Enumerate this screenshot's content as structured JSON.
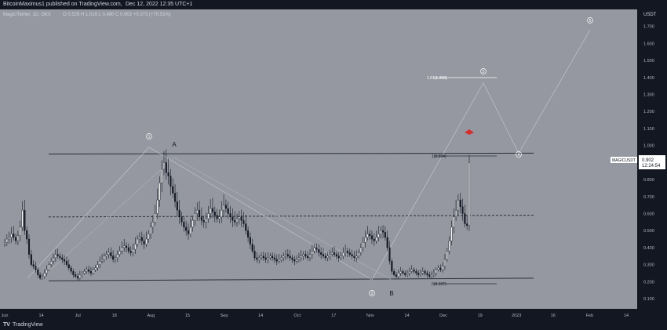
{
  "header": {
    "publisher": "BitcoinMaximus1 published on TradingView.com,",
    "date": "Dec 12, 2022 12:35 UTC+1"
  },
  "footer": {
    "logo": "TV",
    "brand": "TradingView"
  },
  "chart_data": {
    "type": "candlestick",
    "title": "Magic/Tether, 1D, OKX",
    "ohlc_text": "O 0.529  H 1.016  L 0.480  C 0.902  +0.373 (+70.51%)",
    "currency": "USDT",
    "price_axis": {
      "range": [
        0.04,
        1.8
      ],
      "ticks": [
        "0.100",
        "0.200",
        "0.300",
        "0.400",
        "0.500",
        "0.600",
        "0.700",
        "0.800",
        "0.900",
        "1.000",
        "1.100",
        "1.200",
        "1.300",
        "1.400",
        "1.500",
        "1.600",
        "1.700"
      ]
    },
    "time_axis": {
      "ticks": [
        "Jun",
        "14",
        "Jul",
        "18",
        "Aug",
        "15",
        "Sep",
        "14",
        "Oct",
        "17",
        "Nov",
        "14",
        "Dec",
        "19",
        "2023",
        "16",
        "Feb",
        "14"
      ]
    },
    "symbol_label": "MAGICUSDT",
    "last_price": "0.902",
    "countdown": "12:24:54",
    "closes": [
      0.43,
      0.45,
      0.46,
      0.48,
      0.46,
      0.44,
      0.47,
      0.52,
      0.62,
      0.5,
      0.45,
      0.36,
      0.3,
      0.29,
      0.27,
      0.24,
      0.22,
      0.23,
      0.25,
      0.27,
      0.3,
      0.32,
      0.34,
      0.36,
      0.35,
      0.34,
      0.33,
      0.32,
      0.3,
      0.28,
      0.26,
      0.24,
      0.23,
      0.22,
      0.24,
      0.25,
      0.26,
      0.27,
      0.26,
      0.25,
      0.27,
      0.28,
      0.3,
      0.32,
      0.33,
      0.35,
      0.36,
      0.37,
      0.35,
      0.33,
      0.34,
      0.36,
      0.38,
      0.4,
      0.41,
      0.4,
      0.38,
      0.37,
      0.39,
      0.42,
      0.45,
      0.46,
      0.44,
      0.42,
      0.45,
      0.48,
      0.52,
      0.55,
      0.6,
      0.68,
      0.78,
      0.86,
      0.9,
      0.84,
      0.82,
      0.76,
      0.72,
      0.67,
      0.62,
      0.58,
      0.55,
      0.52,
      0.5,
      0.48,
      0.52,
      0.56,
      0.6,
      0.62,
      0.58,
      0.56,
      0.55,
      0.57,
      0.6,
      0.63,
      0.61,
      0.59,
      0.57,
      0.58,
      0.62,
      0.65,
      0.63,
      0.6,
      0.58,
      0.56,
      0.55,
      0.57,
      0.58,
      0.56,
      0.54,
      0.5,
      0.46,
      0.42,
      0.38,
      0.34,
      0.33,
      0.34,
      0.35,
      0.34,
      0.33,
      0.34,
      0.35,
      0.34,
      0.33,
      0.32,
      0.33,
      0.34,
      0.35,
      0.36,
      0.35,
      0.34,
      0.33,
      0.32,
      0.33,
      0.34,
      0.35,
      0.36,
      0.35,
      0.34,
      0.36,
      0.38,
      0.4,
      0.39,
      0.37,
      0.36,
      0.35,
      0.34,
      0.35,
      0.36,
      0.37,
      0.36,
      0.35,
      0.34,
      0.35,
      0.37,
      0.38,
      0.37,
      0.36,
      0.35,
      0.34,
      0.35,
      0.37,
      0.4,
      0.43,
      0.46,
      0.48,
      0.47,
      0.45,
      0.44,
      0.46,
      0.48,
      0.5,
      0.49,
      0.46,
      0.4,
      0.32,
      0.26,
      0.24,
      0.23,
      0.25,
      0.26,
      0.25,
      0.24,
      0.25,
      0.26,
      0.27,
      0.26,
      0.25,
      0.24,
      0.25,
      0.26,
      0.25,
      0.24,
      0.23,
      0.24,
      0.25,
      0.27,
      0.28,
      0.27,
      0.29,
      0.33,
      0.38,
      0.44,
      0.52,
      0.58,
      0.62,
      0.68,
      0.64,
      0.6,
      0.54,
      0.53,
      0.9
    ],
    "annotations": {
      "wave_labels": [
        "1",
        "2",
        "3",
        "4",
        "5"
      ],
      "abc_labels": [
        "A",
        "B"
      ],
      "fib": {
        "top": "1.61(1.358)",
        "mid": "1(0.924)",
        "bottom": "0(0.197)"
      },
      "horizontal_levels": {
        "resistance": 0.95,
        "midline": 0.585,
        "support": 0.21
      }
    },
    "colors": {
      "background": "#9598a1",
      "up": "#ffffff",
      "down": "#131722",
      "line": "#2a2e39",
      "marker": "#d32f2f"
    }
  }
}
